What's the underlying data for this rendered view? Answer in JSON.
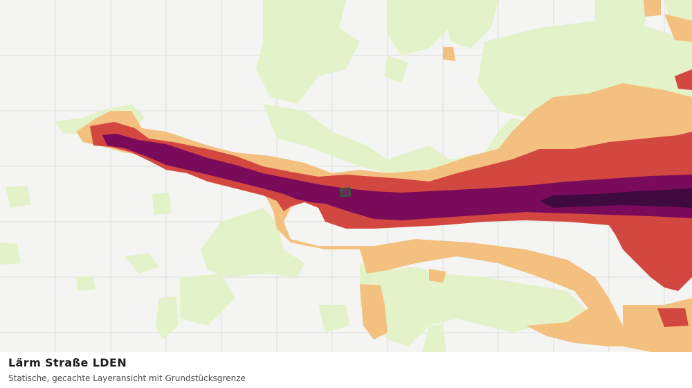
{
  "legend_panel": {
    "title": "Lärm Straße LDEN",
    "subtitle": "Statische, gecachte Layeransicht mit Grundstücksgrenze"
  },
  "colors": {
    "background": "#f4f5f3",
    "grid": "#dcdedb",
    "noise_low": "#e4f2c9",
    "noise_medium": "#f4c07f",
    "noise_high": "#d2473f",
    "noise_very_high": "#7a0a5a",
    "noise_extreme": "#3f0a3f",
    "parcel_outline": "#2f5d3a"
  }
}
